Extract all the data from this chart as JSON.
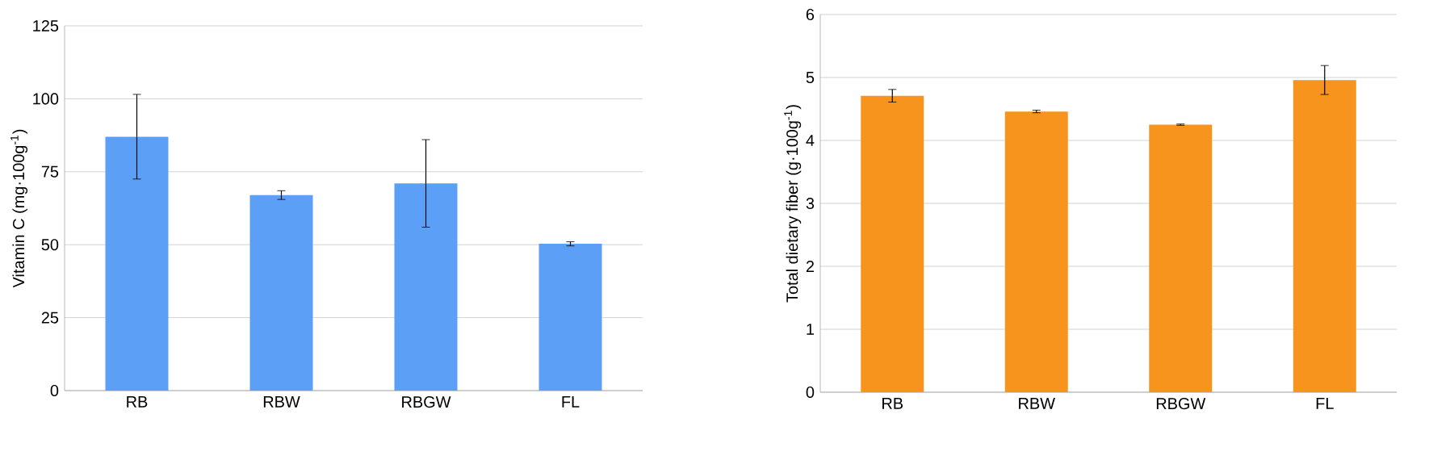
{
  "chart_data": [
    {
      "type": "bar",
      "ylabel": "Vitamin C (mg·100g$^{-1}$)",
      "categories": [
        "RB",
        "RBW",
        "RBGW",
        "FL"
      ],
      "values": [
        87,
        67,
        71,
        50.3
      ],
      "errors": [
        14.5,
        1.5,
        15,
        0.7
      ],
      "color": "#5c9ff7",
      "ylim": [
        0,
        125
      ],
      "yticks": [
        0,
        25,
        50,
        75,
        100,
        125
      ],
      "grid": "y"
    },
    {
      "type": "bar",
      "ylabel": "Total dietary fiber (g·100g$^{-1}$)",
      "categories": [
        "RB",
        "RBW",
        "RBGW",
        "FL"
      ],
      "values": [
        4.71,
        4.46,
        4.25,
        4.96
      ],
      "errors": [
        0.1,
        0.02,
        0.01,
        0.23
      ],
      "color": "#f7941d",
      "ylim": [
        0,
        6
      ],
      "yticks": [
        0,
        1,
        2,
        3,
        4,
        5,
        6
      ],
      "grid": "y"
    }
  ]
}
